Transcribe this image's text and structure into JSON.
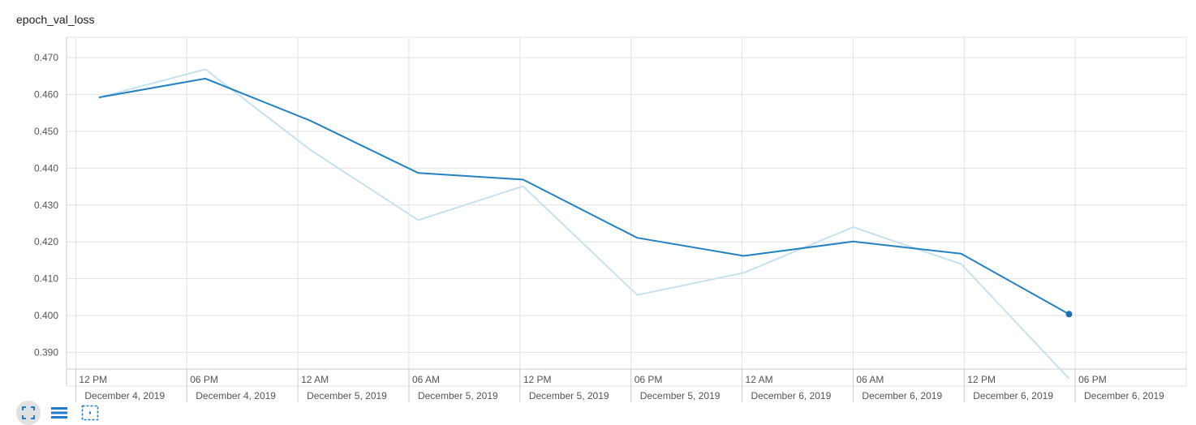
{
  "chart_data": {
    "type": "line",
    "title": "epoch_val_loss",
    "x_axis": {
      "type": "time",
      "range": [
        "2019-12-04T11:30",
        "2019-12-07T00:00"
      ],
      "tick_time_labels": [
        "12 PM",
        "06 PM",
        "12 AM",
        "06 AM",
        "12 PM",
        "06 PM",
        "12 AM",
        "06 AM",
        "12 PM",
        "06 PM"
      ],
      "tick_date_labels": [
        "December 4, 2019",
        "December 4, 2019",
        "December 5, 2019",
        "December 5, 2019",
        "December 5, 2019",
        "December 5, 2019",
        "December 6, 2019",
        "December 6, 2019",
        "December 6, 2019",
        "December 6, 2019"
      ],
      "ticks": [
        "2019-12-04T12:00",
        "2019-12-04T18:00",
        "2019-12-05T00:00",
        "2019-12-05T06:00",
        "2019-12-05T12:00",
        "2019-12-05T18:00",
        "2019-12-06T00:00",
        "2019-12-06T06:00",
        "2019-12-06T12:00",
        "2019-12-06T18:00"
      ]
    },
    "y_axis": {
      "range": [
        0.3855,
        0.4755
      ],
      "tick_labels": [
        "0.470",
        "0.460",
        "0.450",
        "0.440",
        "0.430",
        "0.420",
        "0.410",
        "0.400",
        "0.390"
      ],
      "ticks": [
        0.47,
        0.46,
        0.45,
        0.44,
        0.43,
        0.42,
        0.41,
        0.4,
        0.39
      ]
    },
    "grid": true,
    "series": [
      {
        "role": "raw",
        "color": "#c6e1ef",
        "x": [
          "2019-12-04T13:15",
          "2019-12-04T19:00",
          "2019-12-05T00:40",
          "2019-12-05T06:30",
          "2019-12-05T12:10",
          "2019-12-05T18:20",
          "2019-12-06T00:05",
          "2019-12-06T06:00",
          "2019-12-06T11:50",
          "2019-12-06T17:40"
        ],
        "y": [
          0.4592,
          0.4668,
          0.445,
          0.4259,
          0.4351,
          0.4056,
          0.4116,
          0.424,
          0.414,
          0.3829
        ]
      },
      {
        "role": "smoothed",
        "color": "#2482c3",
        "x": [
          "2019-12-04T13:15",
          "2019-12-04T19:00",
          "2019-12-05T00:40",
          "2019-12-05T06:30",
          "2019-12-05T12:10",
          "2019-12-05T18:20",
          "2019-12-06T00:05",
          "2019-12-06T06:00",
          "2019-12-06T11:50",
          "2019-12-06T17:40"
        ],
        "y": [
          0.4592,
          0.4643,
          0.4529,
          0.4387,
          0.4369,
          0.4211,
          0.4162,
          0.4201,
          0.4168,
          0.4004
        ]
      }
    ]
  },
  "toolbar": {
    "icons": [
      "fit-domain-icon",
      "data-table-icon",
      "selection-zoom-icon"
    ]
  }
}
